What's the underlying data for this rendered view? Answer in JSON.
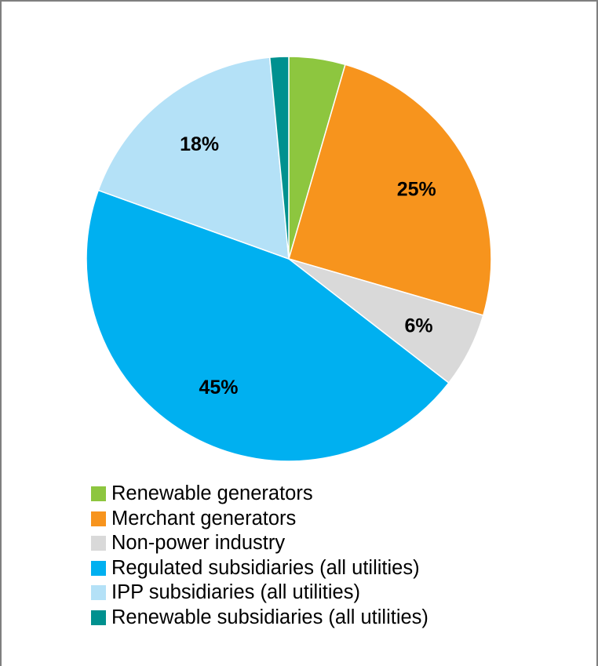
{
  "chart_data": {
    "type": "pie",
    "start": "top",
    "direction": "clockwise",
    "slices": [
      {
        "name": "Renewable generators",
        "value": 4.5,
        "color": "#8dc63f",
        "label": ""
      },
      {
        "name": "Merchant generators",
        "value": 25,
        "color": "#f7941d",
        "label": "25%"
      },
      {
        "name": "Non-power industry",
        "value": 6,
        "color": "#d9d9d9",
        "label": "6%"
      },
      {
        "name": "Regulated subsidiaries (all utilities)",
        "value": 45,
        "color": "#00b0f0",
        "label": "45%"
      },
      {
        "name": "IPP subsidiaries (all utilities)",
        "value": 18,
        "color": "#b4e1f7",
        "label": "18%"
      },
      {
        "name": "Renewable subsidiaries (all utilities)",
        "value": 1.5,
        "color": "#00918f",
        "label": ""
      }
    ],
    "legend_position": "bottom"
  }
}
